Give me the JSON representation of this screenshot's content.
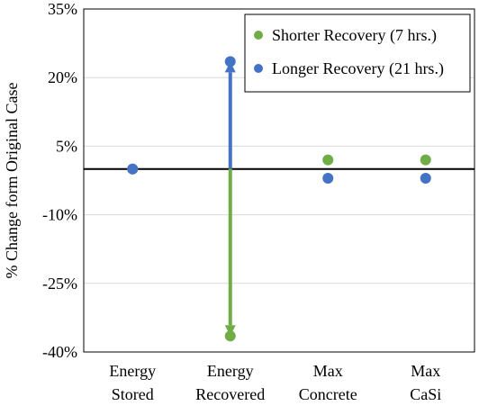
{
  "chart_data": {
    "type": "scatter",
    "ylabel": "% Change form Original Case",
    "xlabel": "",
    "ylim": [
      -40,
      35
    ],
    "yticks": [
      35,
      20,
      5,
      -10,
      -25,
      -40
    ],
    "ytick_labels": [
      "35%",
      "20%",
      "5%",
      "-10%",
      "-25%",
      "-40%"
    ],
    "categories": [
      [
        "Energy",
        "Stored"
      ],
      [
        "Energy",
        "Recovered"
      ],
      [
        "Max",
        "Concrete"
      ],
      [
        "Max",
        "CaSi"
      ]
    ],
    "grid": true,
    "legend_position": "top-right",
    "series": [
      {
        "name": "Shorter Recovery (7 hrs.)",
        "color": "#70ad47",
        "values": [
          0,
          -36.5,
          2,
          2
        ]
      },
      {
        "name": "Longer Recovery (21 hrs.)",
        "color": "#4472c4",
        "values": [
          0,
          23.5,
          -2,
          -2
        ]
      }
    ],
    "annotations": [
      {
        "type": "arrow",
        "category_index": 1,
        "from": 0,
        "to": 23.5,
        "color": "#4472c4"
      },
      {
        "type": "arrow",
        "category_index": 1,
        "from": 0,
        "to": -36.5,
        "color": "#70ad47"
      }
    ]
  }
}
